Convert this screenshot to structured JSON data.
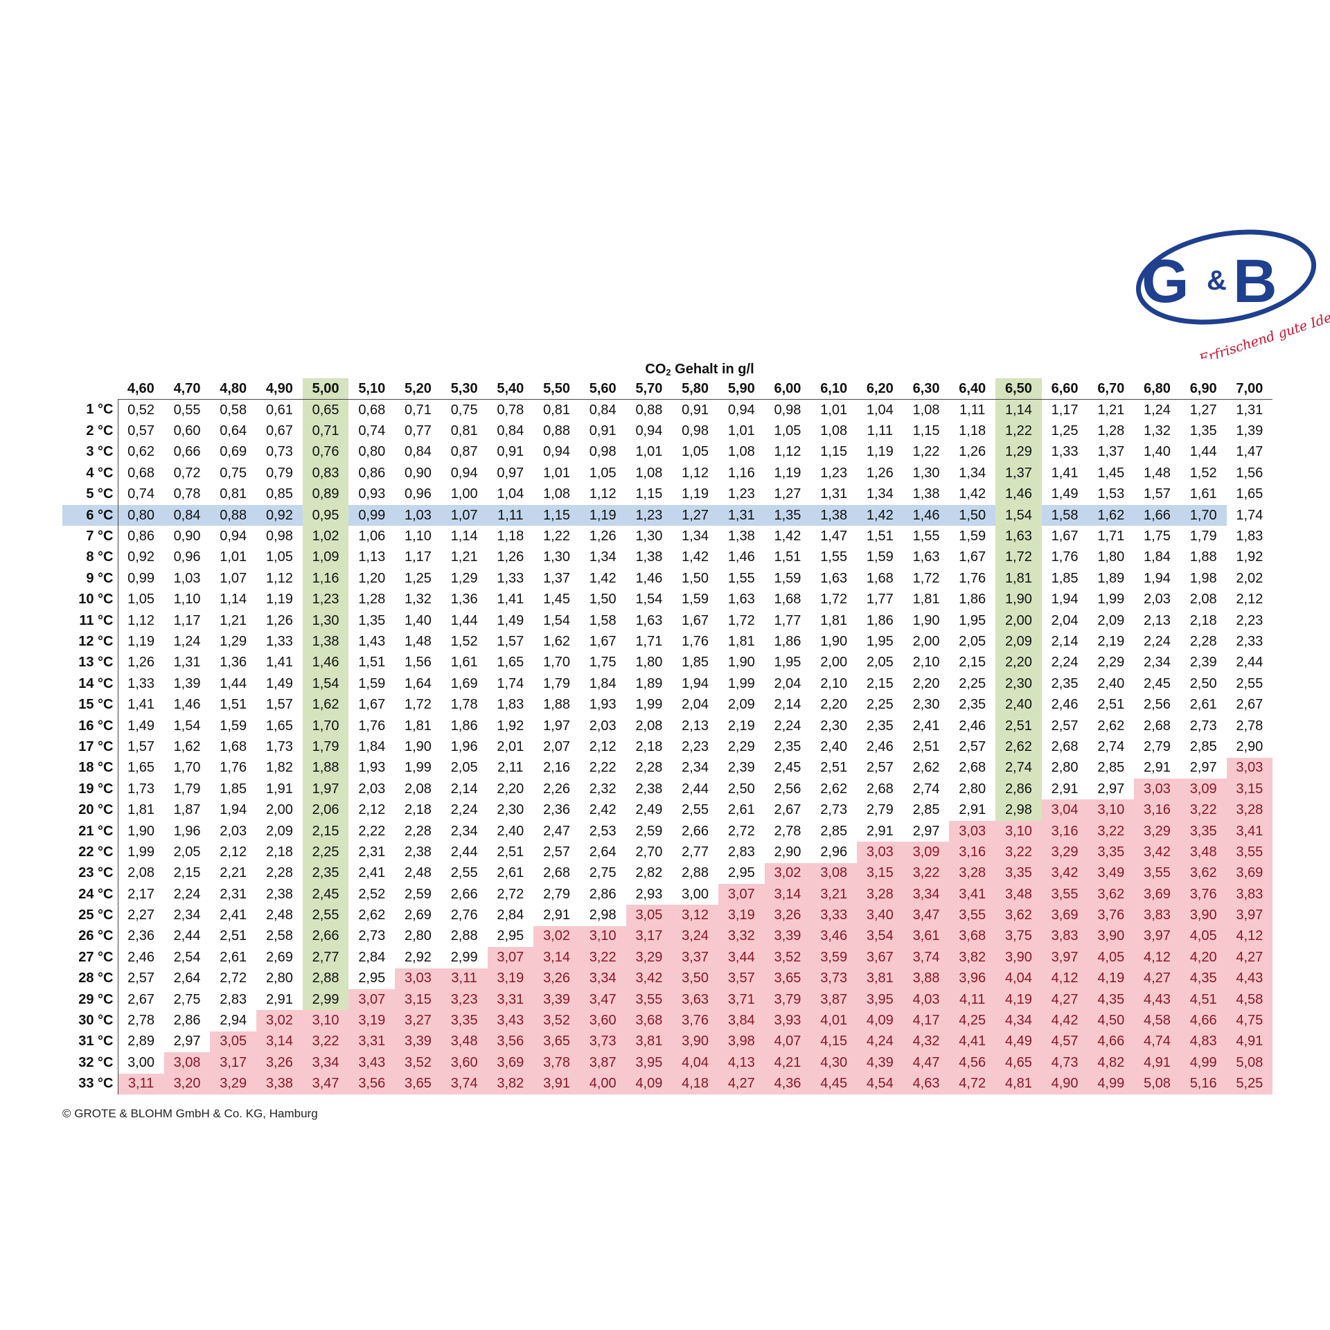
{
  "logo": {
    "letters_left": "G",
    "amp": "&",
    "letters_right": "B",
    "slogan": "Erfrischend gute Ideen"
  },
  "title": {
    "prefix": "CO",
    "sub": "2",
    "suffix": " Gehalt in g/l"
  },
  "colors": {
    "green_highlight": "#d6e3bf",
    "blue_highlight": "#c3d6ec",
    "red_zone": "#f7c9cf",
    "red_text": "#8a1626",
    "brand_blue": "#1f3f8f",
    "brand_red": "#c8102e"
  },
  "highlight": {
    "green_columns": [
      "5,00",
      "6,50"
    ],
    "blue_row": "6 °C",
    "red_threshold": 3.0
  },
  "columns": [
    "4,60",
    "4,70",
    "4,80",
    "4,90",
    "5,00",
    "5,10",
    "5,20",
    "5,30",
    "5,40",
    "5,50",
    "5,60",
    "5,70",
    "5,80",
    "5,90",
    "6,00",
    "6,10",
    "6,20",
    "6,30",
    "6,40",
    "6,50",
    "6,60",
    "6,70",
    "6,80",
    "6,90",
    "7,00"
  ],
  "rows": [
    {
      "label": "1 °C",
      "values": [
        "0,52",
        "0,55",
        "0,58",
        "0,61",
        "0,65",
        "0,68",
        "0,71",
        "0,75",
        "0,78",
        "0,81",
        "0,84",
        "0,88",
        "0,91",
        "0,94",
        "0,98",
        "1,01",
        "1,04",
        "1,08",
        "1,11",
        "1,14",
        "1,17",
        "1,21",
        "1,24",
        "1,27",
        "1,31"
      ]
    },
    {
      "label": "2 °C",
      "values": [
        "0,57",
        "0,60",
        "0,64",
        "0,67",
        "0,71",
        "0,74",
        "0,77",
        "0,81",
        "0,84",
        "0,88",
        "0,91",
        "0,94",
        "0,98",
        "1,01",
        "1,05",
        "1,08",
        "1,11",
        "1,15",
        "1,18",
        "1,22",
        "1,25",
        "1,28",
        "1,32",
        "1,35",
        "1,39"
      ]
    },
    {
      "label": "3 °C",
      "values": [
        "0,62",
        "0,66",
        "0,69",
        "0,73",
        "0,76",
        "0,80",
        "0,84",
        "0,87",
        "0,91",
        "0,94",
        "0,98",
        "1,01",
        "1,05",
        "1,08",
        "1,12",
        "1,15",
        "1,19",
        "1,22",
        "1,26",
        "1,29",
        "1,33",
        "1,37",
        "1,40",
        "1,44",
        "1,47"
      ]
    },
    {
      "label": "4 °C",
      "values": [
        "0,68",
        "0,72",
        "0,75",
        "0,79",
        "0,83",
        "0,86",
        "0,90",
        "0,94",
        "0,97",
        "1,01",
        "1,05",
        "1,08",
        "1,12",
        "1,16",
        "1,19",
        "1,23",
        "1,26",
        "1,30",
        "1,34",
        "1,37",
        "1,41",
        "1,45",
        "1,48",
        "1,52",
        "1,56"
      ]
    },
    {
      "label": "5 °C",
      "values": [
        "0,74",
        "0,78",
        "0,81",
        "0,85",
        "0,89",
        "0,93",
        "0,96",
        "1,00",
        "1,04",
        "1,08",
        "1,12",
        "1,15",
        "1,19",
        "1,23",
        "1,27",
        "1,31",
        "1,34",
        "1,38",
        "1,42",
        "1,46",
        "1,49",
        "1,53",
        "1,57",
        "1,61",
        "1,65"
      ]
    },
    {
      "label": "6 °C",
      "values": [
        "0,80",
        "0,84",
        "0,88",
        "0,92",
        "0,95",
        "0,99",
        "1,03",
        "1,07",
        "1,11",
        "1,15",
        "1,19",
        "1,23",
        "1,27",
        "1,31",
        "1,35",
        "1,38",
        "1,42",
        "1,46",
        "1,50",
        "1,54",
        "1,58",
        "1,62",
        "1,66",
        "1,70",
        "1,74"
      ]
    },
    {
      "label": "7 °C",
      "values": [
        "0,86",
        "0,90",
        "0,94",
        "0,98",
        "1,02",
        "1,06",
        "1,10",
        "1,14",
        "1,18",
        "1,22",
        "1,26",
        "1,30",
        "1,34",
        "1,38",
        "1,42",
        "1,47",
        "1,51",
        "1,55",
        "1,59",
        "1,63",
        "1,67",
        "1,71",
        "1,75",
        "1,79",
        "1,83"
      ]
    },
    {
      "label": "8 °C",
      "values": [
        "0,92",
        "0,96",
        "1,01",
        "1,05",
        "1,09",
        "1,13",
        "1,17",
        "1,21",
        "1,26",
        "1,30",
        "1,34",
        "1,38",
        "1,42",
        "1,46",
        "1,51",
        "1,55",
        "1,59",
        "1,63",
        "1,67",
        "1,72",
        "1,76",
        "1,80",
        "1,84",
        "1,88",
        "1,92"
      ]
    },
    {
      "label": "9 °C",
      "values": [
        "0,99",
        "1,03",
        "1,07",
        "1,12",
        "1,16",
        "1,20",
        "1,25",
        "1,29",
        "1,33",
        "1,37",
        "1,42",
        "1,46",
        "1,50",
        "1,55",
        "1,59",
        "1,63",
        "1,68",
        "1,72",
        "1,76",
        "1,81",
        "1,85",
        "1,89",
        "1,94",
        "1,98",
        "2,02"
      ]
    },
    {
      "label": "10 °C",
      "values": [
        "1,05",
        "1,10",
        "1,14",
        "1,19",
        "1,23",
        "1,28",
        "1,32",
        "1,36",
        "1,41",
        "1,45",
        "1,50",
        "1,54",
        "1,59",
        "1,63",
        "1,68",
        "1,72",
        "1,77",
        "1,81",
        "1,86",
        "1,90",
        "1,94",
        "1,99",
        "2,03",
        "2,08",
        "2,12"
      ]
    },
    {
      "label": "11 °C",
      "values": [
        "1,12",
        "1,17",
        "1,21",
        "1,26",
        "1,30",
        "1,35",
        "1,40",
        "1,44",
        "1,49",
        "1,54",
        "1,58",
        "1,63",
        "1,67",
        "1,72",
        "1,77",
        "1,81",
        "1,86",
        "1,90",
        "1,95",
        "2,00",
        "2,04",
        "2,09",
        "2,13",
        "2,18",
        "2,23"
      ]
    },
    {
      "label": "12 °C",
      "values": [
        "1,19",
        "1,24",
        "1,29",
        "1,33",
        "1,38",
        "1,43",
        "1,48",
        "1,52",
        "1,57",
        "1,62",
        "1,67",
        "1,71",
        "1,76",
        "1,81",
        "1,86",
        "1,90",
        "1,95",
        "2,00",
        "2,05",
        "2,09",
        "2,14",
        "2,19",
        "2,24",
        "2,28",
        "2,33"
      ]
    },
    {
      "label": "13 °C",
      "values": [
        "1,26",
        "1,31",
        "1,36",
        "1,41",
        "1,46",
        "1,51",
        "1,56",
        "1,61",
        "1,65",
        "1,70",
        "1,75",
        "1,80",
        "1,85",
        "1,90",
        "1,95",
        "2,00",
        "2,05",
        "2,10",
        "2,15",
        "2,20",
        "2,24",
        "2,29",
        "2,34",
        "2,39",
        "2,44"
      ]
    },
    {
      "label": "14 °C",
      "values": [
        "1,33",
        "1,39",
        "1,44",
        "1,49",
        "1,54",
        "1,59",
        "1,64",
        "1,69",
        "1,74",
        "1,79",
        "1,84",
        "1,89",
        "1,94",
        "1,99",
        "2,04",
        "2,10",
        "2,15",
        "2,20",
        "2,25",
        "2,30",
        "2,35",
        "2,40",
        "2,45",
        "2,50",
        "2,55"
      ]
    },
    {
      "label": "15 °C",
      "values": [
        "1,41",
        "1,46",
        "1,51",
        "1,57",
        "1,62",
        "1,67",
        "1,72",
        "1,78",
        "1,83",
        "1,88",
        "1,93",
        "1,99",
        "2,04",
        "2,09",
        "2,14",
        "2,20",
        "2,25",
        "2,30",
        "2,35",
        "2,40",
        "2,46",
        "2,51",
        "2,56",
        "2,61",
        "2,67"
      ]
    },
    {
      "label": "16 °C",
      "values": [
        "1,49",
        "1,54",
        "1,59",
        "1,65",
        "1,70",
        "1,76",
        "1,81",
        "1,86",
        "1,92",
        "1,97",
        "2,03",
        "2,08",
        "2,13",
        "2,19",
        "2,24",
        "2,30",
        "2,35",
        "2,41",
        "2,46",
        "2,51",
        "2,57",
        "2,62",
        "2,68",
        "2,73",
        "2,78"
      ]
    },
    {
      "label": "17 °C",
      "values": [
        "1,57",
        "1,62",
        "1,68",
        "1,73",
        "1,79",
        "1,84",
        "1,90",
        "1,96",
        "2,01",
        "2,07",
        "2,12",
        "2,18",
        "2,23",
        "2,29",
        "2,35",
        "2,40",
        "2,46",
        "2,51",
        "2,57",
        "2,62",
        "2,68",
        "2,74",
        "2,79",
        "2,85",
        "2,90"
      ]
    },
    {
      "label": "18 °C",
      "values": [
        "1,65",
        "1,70",
        "1,76",
        "1,82",
        "1,88",
        "1,93",
        "1,99",
        "2,05",
        "2,11",
        "2,16",
        "2,22",
        "2,28",
        "2,34",
        "2,39",
        "2,45",
        "2,51",
        "2,57",
        "2,62",
        "2,68",
        "2,74",
        "2,80",
        "2,85",
        "2,91",
        "2,97",
        "3,03"
      ]
    },
    {
      "label": "19 °C",
      "values": [
        "1,73",
        "1,79",
        "1,85",
        "1,91",
        "1,97",
        "2,03",
        "2,08",
        "2,14",
        "2,20",
        "2,26",
        "2,32",
        "2,38",
        "2,44",
        "2,50",
        "2,56",
        "2,62",
        "2,68",
        "2,74",
        "2,80",
        "2,86",
        "2,91",
        "2,97",
        "3,03",
        "3,09",
        "3,15"
      ]
    },
    {
      "label": "20 °C",
      "values": [
        "1,81",
        "1,87",
        "1,94",
        "2,00",
        "2,06",
        "2,12",
        "2,18",
        "2,24",
        "2,30",
        "2,36",
        "2,42",
        "2,49",
        "2,55",
        "2,61",
        "2,67",
        "2,73",
        "2,79",
        "2,85",
        "2,91",
        "2,98",
        "3,04",
        "3,10",
        "3,16",
        "3,22",
        "3,28"
      ]
    },
    {
      "label": "21 °C",
      "values": [
        "1,90",
        "1,96",
        "2,03",
        "2,09",
        "2,15",
        "2,22",
        "2,28",
        "2,34",
        "2,40",
        "2,47",
        "2,53",
        "2,59",
        "2,66",
        "2,72",
        "2,78",
        "2,85",
        "2,91",
        "2,97",
        "3,03",
        "3,10",
        "3,16",
        "3,22",
        "3,29",
        "3,35",
        "3,41"
      ]
    },
    {
      "label": "22 °C",
      "values": [
        "1,99",
        "2,05",
        "2,12",
        "2,18",
        "2,25",
        "2,31",
        "2,38",
        "2,44",
        "2,51",
        "2,57",
        "2,64",
        "2,70",
        "2,77",
        "2,83",
        "2,90",
        "2,96",
        "3,03",
        "3,09",
        "3,16",
        "3,22",
        "3,29",
        "3,35",
        "3,42",
        "3,48",
        "3,55"
      ]
    },
    {
      "label": "23 °C",
      "values": [
        "2,08",
        "2,15",
        "2,21",
        "2,28",
        "2,35",
        "2,41",
        "2,48",
        "2,55",
        "2,61",
        "2,68",
        "2,75",
        "2,82",
        "2,88",
        "2,95",
        "3,02",
        "3,08",
        "3,15",
        "3,22",
        "3,28",
        "3,35",
        "3,42",
        "3,49",
        "3,55",
        "3,62",
        "3,69"
      ]
    },
    {
      "label": "24 °C",
      "values": [
        "2,17",
        "2,24",
        "2,31",
        "2,38",
        "2,45",
        "2,52",
        "2,59",
        "2,66",
        "2,72",
        "2,79",
        "2,86",
        "2,93",
        "3,00",
        "3,07",
        "3,14",
        "3,21",
        "3,28",
        "3,34",
        "3,41",
        "3,48",
        "3,55",
        "3,62",
        "3,69",
        "3,76",
        "3,83"
      ]
    },
    {
      "label": "25 °C",
      "values": [
        "2,27",
        "2,34",
        "2,41",
        "2,48",
        "2,55",
        "2,62",
        "2,69",
        "2,76",
        "2,84",
        "2,91",
        "2,98",
        "3,05",
        "3,12",
        "3,19",
        "3,26",
        "3,33",
        "3,40",
        "3,47",
        "3,55",
        "3,62",
        "3,69",
        "3,76",
        "3,83",
        "3,90",
        "3,97"
      ]
    },
    {
      "label": "26 °C",
      "values": [
        "2,36",
        "2,44",
        "2,51",
        "2,58",
        "2,66",
        "2,73",
        "2,80",
        "2,88",
        "2,95",
        "3,02",
        "3,10",
        "3,17",
        "3,24",
        "3,32",
        "3,39",
        "3,46",
        "3,54",
        "3,61",
        "3,68",
        "3,75",
        "3,83",
        "3,90",
        "3,97",
        "4,05",
        "4,12"
      ]
    },
    {
      "label": "27 °C",
      "values": [
        "2,46",
        "2,54",
        "2,61",
        "2,69",
        "2,77",
        "2,84",
        "2,92",
        "2,99",
        "3,07",
        "3,14",
        "3,22",
        "3,29",
        "3,37",
        "3,44",
        "3,52",
        "3,59",
        "3,67",
        "3,74",
        "3,82",
        "3,90",
        "3,97",
        "4,05",
        "4,12",
        "4,20",
        "4,27"
      ]
    },
    {
      "label": "28 °C",
      "values": [
        "2,57",
        "2,64",
        "2,72",
        "2,80",
        "2,88",
        "2,95",
        "3,03",
        "3,11",
        "3,19",
        "3,26",
        "3,34",
        "3,42",
        "3,50",
        "3,57",
        "3,65",
        "3,73",
        "3,81",
        "3,88",
        "3,96",
        "4,04",
        "4,12",
        "4,19",
        "4,27",
        "4,35",
        "4,43"
      ]
    },
    {
      "label": "29 °C",
      "values": [
        "2,67",
        "2,75",
        "2,83",
        "2,91",
        "2,99",
        "3,07",
        "3,15",
        "3,23",
        "3,31",
        "3,39",
        "3,47",
        "3,55",
        "3,63",
        "3,71",
        "3,79",
        "3,87",
        "3,95",
        "4,03",
        "4,11",
        "4,19",
        "4,27",
        "4,35",
        "4,43",
        "4,51",
        "4,58"
      ]
    },
    {
      "label": "30 °C",
      "values": [
        "2,78",
        "2,86",
        "2,94",
        "3,02",
        "3,10",
        "3,19",
        "3,27",
        "3,35",
        "3,43",
        "3,52",
        "3,60",
        "3,68",
        "3,76",
        "3,84",
        "3,93",
        "4,01",
        "4,09",
        "4,17",
        "4,25",
        "4,34",
        "4,42",
        "4,50",
        "4,58",
        "4,66",
        "4,75"
      ]
    },
    {
      "label": "31 °C",
      "values": [
        "2,89",
        "2,97",
        "3,05",
        "3,14",
        "3,22",
        "3,31",
        "3,39",
        "3,48",
        "3,56",
        "3,65",
        "3,73",
        "3,81",
        "3,90",
        "3,98",
        "4,07",
        "4,15",
        "4,24",
        "4,32",
        "4,41",
        "4,49",
        "4,57",
        "4,66",
        "4,74",
        "4,83",
        "4,91"
      ]
    },
    {
      "label": "32 °C",
      "values": [
        "3,00",
        "3,08",
        "3,17",
        "3,26",
        "3,34",
        "3,43",
        "3,52",
        "3,60",
        "3,69",
        "3,78",
        "3,87",
        "3,95",
        "4,04",
        "4,13",
        "4,21",
        "4,30",
        "4,39",
        "4,47",
        "4,56",
        "4,65",
        "4,73",
        "4,82",
        "4,91",
        "4,99",
        "5,08"
      ]
    },
    {
      "label": "33 °C",
      "values": [
        "3,11",
        "3,20",
        "3,29",
        "3,38",
        "3,47",
        "3,56",
        "3,65",
        "3,74",
        "3,82",
        "3,91",
        "4,00",
        "4,09",
        "4,18",
        "4,27",
        "4,36",
        "4,45",
        "4,54",
        "4,63",
        "4,72",
        "4,81",
        "4,90",
        "4,99",
        "5,08",
        "5,16",
        "5,25"
      ]
    }
  ],
  "footer": "© GROTE & BLOHM GmbH & Co. KG, Hamburg"
}
